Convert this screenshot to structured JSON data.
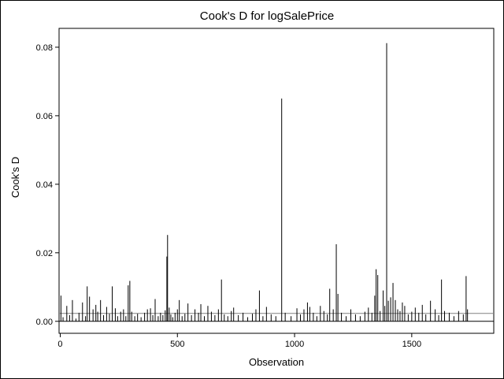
{
  "chart_data": {
    "type": "bar",
    "title": "Cook's D for logSalePrice",
    "xlabel": "Observation",
    "ylabel": "Cook's D",
    "xlim": [
      -5,
      1850
    ],
    "ylim": [
      -0.0035,
      0.0855
    ],
    "xticks": [
      0,
      500,
      1000,
      1500
    ],
    "yticks": [
      0.0,
      0.02,
      0.04,
      0.06,
      0.08
    ],
    "ytick_labels": [
      "0.00",
      "0.02",
      "0.04",
      "0.06",
      "0.08"
    ],
    "reference_line": 0.0023,
    "grid": false,
    "legend": "none",
    "color": "#000000",
    "x": [
      3,
      12,
      28,
      40,
      52,
      67,
      80,
      95,
      108,
      115,
      125,
      140,
      152,
      160,
      172,
      185,
      198,
      210,
      222,
      235,
      245,
      258,
      270,
      280,
      290,
      297,
      305,
      318,
      330,
      345,
      360,
      372,
      385,
      395,
      405,
      418,
      428,
      438,
      448,
      455,
      458,
      465,
      472,
      480,
      490,
      500,
      508,
      520,
      532,
      545,
      560,
      575,
      590,
      600,
      615,
      630,
      645,
      660,
      675,
      688,
      700,
      715,
      730,
      740,
      760,
      780,
      800,
      820,
      835,
      850,
      865,
      880,
      900,
      920,
      945,
      960,
      985,
      1010,
      1025,
      1040,
      1055,
      1065,
      1080,
      1095,
      1110,
      1125,
      1140,
      1150,
      1165,
      1178,
      1185,
      1200,
      1220,
      1240,
      1260,
      1280,
      1300,
      1315,
      1330,
      1342,
      1348,
      1355,
      1365,
      1378,
      1385,
      1393,
      1400,
      1410,
      1420,
      1430,
      1440,
      1450,
      1460,
      1470,
      1485,
      1500,
      1515,
      1530,
      1545,
      1560,
      1580,
      1600,
      1615,
      1627,
      1640,
      1660,
      1680,
      1700,
      1720,
      1732,
      1738
    ],
    "values": [
      0.0075,
      0.0012,
      0.0045,
      0.0018,
      0.0062,
      0.0008,
      0.0025,
      0.0055,
      0.0015,
      0.0102,
      0.0072,
      0.0035,
      0.0048,
      0.0028,
      0.0062,
      0.0018,
      0.0042,
      0.0022,
      0.0102,
      0.0038,
      0.0015,
      0.0028,
      0.0035,
      0.0015,
      0.0105,
      0.0118,
      0.0028,
      0.0015,
      0.0022,
      0.0012,
      0.0025,
      0.0035,
      0.0038,
      0.0018,
      0.0065,
      0.0015,
      0.0025,
      0.0018,
      0.0032,
      0.0189,
      0.0252,
      0.004,
      0.002,
      0.0012,
      0.0025,
      0.0035,
      0.0062,
      0.0015,
      0.0022,
      0.0052,
      0.0018,
      0.0035,
      0.0025,
      0.005,
      0.0015,
      0.0045,
      0.0028,
      0.0018,
      0.0035,
      0.0122,
      0.002,
      0.0015,
      0.003,
      0.004,
      0.0018,
      0.0025,
      0.0012,
      0.0022,
      0.0035,
      0.009,
      0.0015,
      0.0042,
      0.002,
      0.0015,
      0.065,
      0.0025,
      0.0015,
      0.0038,
      0.002,
      0.0035,
      0.0055,
      0.0042,
      0.0025,
      0.0015,
      0.0045,
      0.003,
      0.002,
      0.0095,
      0.0035,
      0.0225,
      0.008,
      0.0025,
      0.0015,
      0.0035,
      0.002,
      0.0015,
      0.0028,
      0.004,
      0.0025,
      0.0075,
      0.0152,
      0.0135,
      0.003,
      0.009,
      0.0045,
      0.0812,
      0.006,
      0.007,
      0.0112,
      0.0062,
      0.0035,
      0.003,
      0.0055,
      0.0045,
      0.002,
      0.0028,
      0.004,
      0.0025,
      0.0048,
      0.002,
      0.006,
      0.0035,
      0.0018,
      0.0122,
      0.003,
      0.0025,
      0.0015,
      0.003,
      0.002,
      0.0132,
      0.0035
    ]
  }
}
